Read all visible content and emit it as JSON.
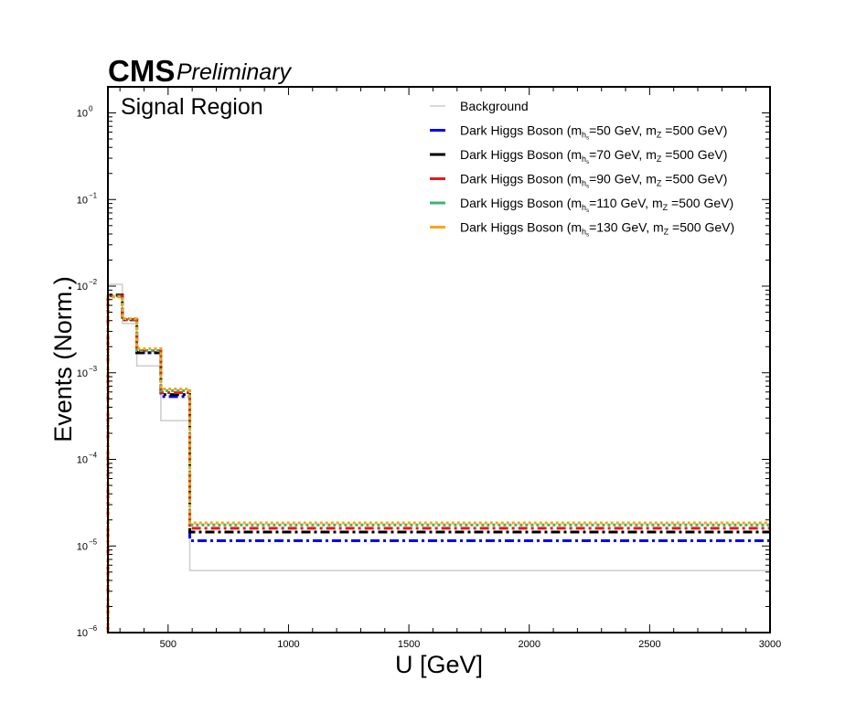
{
  "header": {
    "experiment": "CMS",
    "status": "Preliminary"
  },
  "region_label": "Signal Region",
  "chart_data": {
    "type": "line",
    "drawstyle": "step histogram",
    "xlabel": "U [GeV]",
    "ylabel": "Events (Norm.)",
    "xlim": [
      250,
      3000
    ],
    "ylim": [
      1e-06,
      2.0
    ],
    "yscale": "log",
    "x_ticks": [
      500,
      1000,
      1500,
      2000,
      2500,
      3000
    ],
    "y_ticks": [
      {
        "value": 1e-06,
        "base": "10",
        "exp": "−6"
      },
      {
        "value": 1e-05,
        "base": "10",
        "exp": "−5"
      },
      {
        "value": 0.0001,
        "base": "10",
        "exp": "−4"
      },
      {
        "value": 0.001,
        "base": "10",
        "exp": "−3"
      },
      {
        "value": 0.01,
        "base": "10",
        "exp": "−2"
      },
      {
        "value": 0.1,
        "base": "10",
        "exp": "−1"
      },
      {
        "value": 1,
        "base": "10",
        "exp": "0"
      }
    ],
    "bin_edges": [
      250,
      310,
      370,
      470,
      590,
      3000
    ],
    "legend_position": "upper right",
    "series": [
      {
        "legend_pre": "Background",
        "legend_post": "",
        "color": "#cccccc",
        "style": "solid",
        "values": [
          0.0105,
          0.0037,
          0.0012,
          0.00028,
          5.2e-06
        ]
      },
      {
        "legend_pre": "Dark Higgs Boson (m",
        "sub1": "h",
        "sub2": "s",
        "legend_mid": "=50 GeV, m",
        "sub3": "Z",
        "legend_post": " =500 GeV)",
        "color": "#0000ff",
        "style": "dashdot",
        "values": [
          0.0078,
          0.0041,
          0.0017,
          0.00053,
          1.15e-05
        ]
      },
      {
        "legend_pre": "Dark Higgs Boson (m",
        "sub1": "h",
        "sub2": "s",
        "legend_mid": "=70 GeV, m",
        "sub3": "Z",
        "legend_post": " =500 GeV)",
        "color": "#000000",
        "style": "dashdot",
        "values": [
          0.0079,
          0.0041,
          0.0017,
          0.00056,
          1.45e-05
        ]
      },
      {
        "legend_pre": "Dark Higgs Boson (m",
        "sub1": "h",
        "sub2": "s",
        "legend_mid": "=90 GeV, m",
        "sub3": "Z",
        "legend_post": " =500 GeV)",
        "color": "#e8191c",
        "style": "dashdot",
        "values": [
          0.0077,
          0.0041,
          0.0018,
          0.00059,
          1.6e-05
        ]
      },
      {
        "legend_pre": "Dark Higgs Boson (m",
        "sub1": "h",
        "sub2": "s",
        "legend_mid": "=110 GeV, m",
        "sub3": "Z",
        "legend_post": " =500 GeV)",
        "color": "#3cb371",
        "style": "dotted",
        "values": [
          0.0076,
          0.0042,
          0.0018,
          0.00062,
          1.75e-05
        ]
      },
      {
        "legend_pre": "Dark Higgs Boson (m",
        "sub1": "h",
        "sub2": "s",
        "legend_mid": "=130 GeV, m",
        "sub3": "Z",
        "legend_post": " =500 GeV)",
        "color": "#ffa500",
        "style": "dotted",
        "values": [
          0.0075,
          0.0042,
          0.0019,
          0.00065,
          1.85e-05
        ]
      }
    ]
  }
}
